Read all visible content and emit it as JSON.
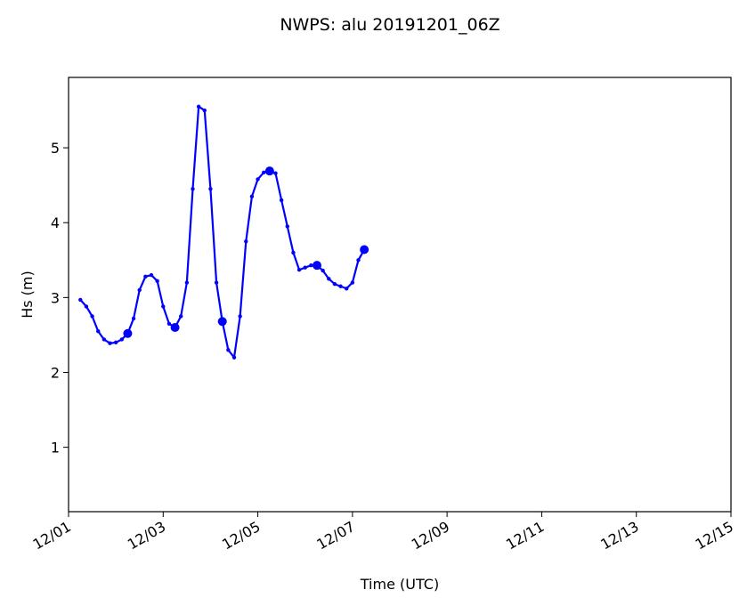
{
  "chart_data": {
    "type": "line",
    "title": "NWPS: alu 20191201_06Z",
    "x_label": "Time (UTC)",
    "y_label": "Hs (m)",
    "x": [
      0.25,
      0.375,
      0.5,
      0.625,
      0.75,
      0.875,
      1,
      1.125,
      1.25,
      1.375,
      1.5,
      1.625,
      1.75,
      1.875,
      2,
      2.125,
      2.25,
      2.375,
      2.5,
      2.625,
      2.75,
      2.875,
      3,
      3.125,
      3.25,
      3.375,
      3.5,
      3.625,
      3.75,
      3.875,
      4,
      4.125,
      4.25,
      4.375,
      4.5,
      4.625,
      4.75,
      4.875,
      5,
      5.125,
      5.25,
      5.375,
      5.5,
      5.625,
      5.75,
      5.875,
      6,
      6.125,
      6.25
    ],
    "series": [
      {
        "color": "#0000ff",
        "values": [
          2.97,
          2.88,
          2.75,
          2.55,
          2.44,
          2.39,
          2.4,
          2.44,
          2.52,
          2.72,
          3.1,
          3.28,
          3.3,
          3.22,
          2.88,
          2.65,
          2.6,
          2.75,
          3.2,
          4.45,
          5.55,
          5.5,
          4.45,
          3.2,
          2.68,
          2.3,
          2.2,
          2.75,
          3.75,
          4.35,
          4.58,
          4.67,
          4.69,
          4.66,
          4.3,
          3.95,
          3.6,
          3.37,
          3.4,
          3.43,
          3.43,
          3.36,
          3.25,
          3.18,
          3.15,
          3.12,
          3.2,
          3.5,
          3.64
        ]
      }
    ],
    "xlim": [
      0,
      14
    ],
    "xticks": [
      {
        "value": 0,
        "label": "12/01"
      },
      {
        "value": 2,
        "label": "12/03"
      },
      {
        "value": 4,
        "label": "12/05"
      },
      {
        "value": 6,
        "label": "12/07"
      },
      {
        "value": 8,
        "label": "12/09"
      },
      {
        "value": 10,
        "label": "12/11"
      },
      {
        "value": 12,
        "label": "12/13"
      },
      {
        "value": 14,
        "label": "12/15"
      }
    ],
    "ylim": [
      0.14,
      5.94
    ],
    "yticks": [
      1,
      2,
      3,
      4,
      5
    ],
    "grid": false
  }
}
